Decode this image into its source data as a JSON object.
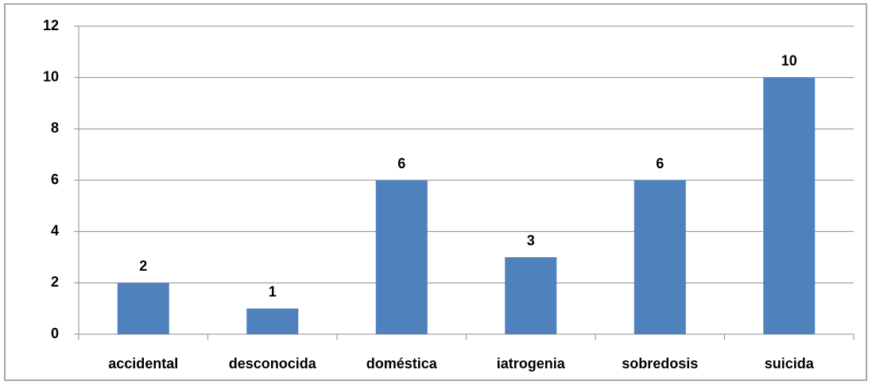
{
  "chart_data": {
    "type": "bar",
    "categories": [
      "accidental",
      "desconocida",
      "doméstica",
      "iatrogenia",
      "sobredosis",
      "suicida"
    ],
    "values": [
      2,
      1,
      6,
      3,
      6,
      10
    ],
    "color": "#4f81bd",
    "ylim": [
      0,
      12
    ],
    "yticks": [
      0,
      2,
      4,
      6,
      8,
      10,
      12
    ],
    "grid": true
  }
}
